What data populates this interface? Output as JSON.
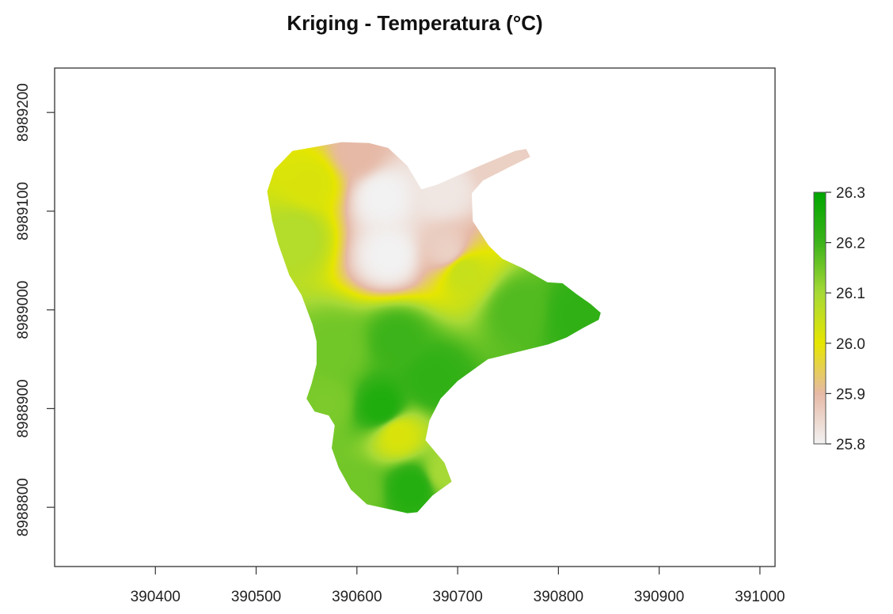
{
  "chart_data": {
    "type": "heatmap",
    "title": "Kriging - Temperatura (°C)",
    "xlabel": "",
    "ylabel": "",
    "xlim": [
      390300,
      391015
    ],
    "ylim": [
      8988740,
      8989245
    ],
    "x_ticks": [
      {
        "value": 390400,
        "label": "390400"
      },
      {
        "value": 390500,
        "label": "390500"
      },
      {
        "value": 390600,
        "label": "390600"
      },
      {
        "value": 390700,
        "label": "390700"
      },
      {
        "value": 390800,
        "label": "390800"
      },
      {
        "value": 390900,
        "label": "390900"
      },
      {
        "value": 391000,
        "label": "391000"
      }
    ],
    "y_ticks": [
      {
        "value": 8989200,
        "label": "8989200"
      },
      {
        "value": 8989100,
        "label": "8989100"
      },
      {
        "value": 8989000,
        "label": "8989000"
      },
      {
        "value": 8988900,
        "label": "8988900"
      },
      {
        "value": 8988800,
        "label": "8988800"
      }
    ],
    "legend": {
      "placement": "right",
      "min": 25.8,
      "max": 26.3,
      "ticks": [
        {
          "value": 26.3,
          "label": "26.3"
        },
        {
          "value": 26.2,
          "label": "26.2"
        },
        {
          "value": 26.1,
          "label": "26.1"
        },
        {
          "value": 26.0,
          "label": "26.0"
        },
        {
          "value": 25.9,
          "label": "25.9"
        },
        {
          "value": 25.8,
          "label": "25.8"
        }
      ]
    },
    "color_stops": [
      {
        "value": 25.8,
        "color": "#f2f2f2"
      },
      {
        "value": 25.9,
        "color": "#e6b9a6"
      },
      {
        "value": 26.0,
        "color": "#e6e600"
      },
      {
        "value": 26.1,
        "color": "#a6d936"
      },
      {
        "value": 26.2,
        "color": "#3cb31a"
      },
      {
        "value": 26.3,
        "color": "#00a600"
      }
    ],
    "grid": false,
    "region_outline": [
      [
        390518,
        8989142
      ],
      [
        390536,
        8989161
      ],
      [
        390585,
        8989170
      ],
      [
        390612,
        8989169
      ],
      [
        390631,
        8989164
      ],
      [
        390650,
        8989146
      ],
      [
        390664,
        8989122
      ],
      [
        390680,
        8989127
      ],
      [
        390720,
        8989145
      ],
      [
        390757,
        8989161
      ],
      [
        390768,
        8989163
      ],
      [
        390772,
        8989155
      ],
      [
        390752,
        8989145
      ],
      [
        390725,
        8989131
      ],
      [
        390714,
        8989118
      ],
      [
        390715,
        8989090
      ],
      [
        390731,
        8989065
      ],
      [
        390744,
        8989052
      ],
      [
        390765,
        8989042
      ],
      [
        390789,
        8989028
      ],
      [
        390804,
        8989027
      ],
      [
        390818,
        8989016
      ],
      [
        390832,
        8989006
      ],
      [
        390842,
        8988997
      ],
      [
        390840,
        8988990
      ],
      [
        390825,
        8988982
      ],
      [
        390808,
        8988972
      ],
      [
        390790,
        8988965
      ],
      [
        390770,
        8988960
      ],
      [
        390750,
        8988955
      ],
      [
        390730,
        8988950
      ],
      [
        390700,
        8988928
      ],
      [
        390683,
        8988910
      ],
      [
        390672,
        8988888
      ],
      [
        390668,
        8988868
      ],
      [
        390687,
        8988845
      ],
      [
        390694,
        8988826
      ],
      [
        390675,
        8988812
      ],
      [
        390660,
        8988795
      ],
      [
        390650,
        8988794
      ],
      [
        390610,
        8988803
      ],
      [
        390594,
        8988818
      ],
      [
        390582,
        8988840
      ],
      [
        390575,
        8988860
      ],
      [
        390578,
        8988883
      ],
      [
        390572,
        8988893
      ],
      [
        390558,
        8988897
      ],
      [
        390550,
        8988910
      ],
      [
        390555,
        8988925
      ],
      [
        390560,
        8988945
      ],
      [
        390560,
        8988968
      ],
      [
        390556,
        8988985
      ],
      [
        390545,
        8989015
      ],
      [
        390533,
        8989035
      ],
      [
        390522,
        8989067
      ],
      [
        390516,
        8989090
      ],
      [
        390511,
        8989120
      ]
    ],
    "field_nodes": [
      {
        "x": 390632,
        "y": 8989055,
        "value": 25.8
      },
      {
        "x": 390625,
        "y": 8989115,
        "value": 25.8
      },
      {
        "x": 390685,
        "y": 8989120,
        "value": 25.82
      },
      {
        "x": 390740,
        "y": 8989148,
        "value": 25.86
      },
      {
        "x": 390600,
        "y": 8989160,
        "value": 25.9
      },
      {
        "x": 390690,
        "y": 8989060,
        "value": 25.86
      },
      {
        "x": 390555,
        "y": 8989130,
        "value": 26.02
      },
      {
        "x": 390540,
        "y": 8989075,
        "value": 26.08
      },
      {
        "x": 390705,
        "y": 8989040,
        "value": 26.05
      },
      {
        "x": 390760,
        "y": 8989000,
        "value": 26.18
      },
      {
        "x": 390820,
        "y": 8988995,
        "value": 26.22
      },
      {
        "x": 390640,
        "y": 8988970,
        "value": 26.2
      },
      {
        "x": 390580,
        "y": 8988960,
        "value": 26.15
      },
      {
        "x": 390675,
        "y": 8988930,
        "value": 26.22
      },
      {
        "x": 390625,
        "y": 8988900,
        "value": 26.25
      },
      {
        "x": 390640,
        "y": 8988875,
        "value": 26.02
      },
      {
        "x": 390655,
        "y": 8988820,
        "value": 26.24
      },
      {
        "x": 390688,
        "y": 8988835,
        "value": 26.1
      },
      {
        "x": 390600,
        "y": 8988815,
        "value": 26.15
      },
      {
        "x": 390570,
        "y": 8988905,
        "value": 26.14
      }
    ]
  }
}
